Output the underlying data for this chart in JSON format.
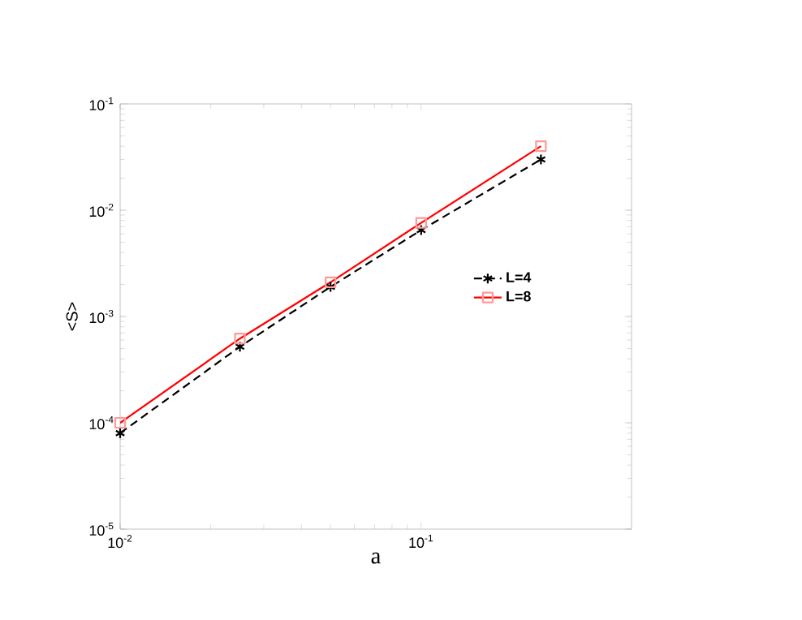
{
  "chart_data": {
    "type": "line",
    "xlabel": "a",
    "ylabel": "<S>",
    "log": "xy",
    "x": [
      0.01,
      0.025,
      0.05,
      0.1,
      0.25
    ],
    "xlim": [
      0.01,
      0.5
    ],
    "ylim": [
      1e-05,
      0.1
    ],
    "xticks": [
      {
        "value": 0.01,
        "label": "10$^{-2}$"
      },
      {
        "value": 0.1,
        "label": "10$^{-1}$"
      }
    ],
    "yticks": [
      {
        "value": 1e-05,
        "label": "10$^{-5}$"
      },
      {
        "value": 0.0001,
        "label": "10$^{-4}$"
      },
      {
        "value": 0.001,
        "label": "10$^{-3}$"
      },
      {
        "value": 0.01,
        "label": "10$^{-2}$"
      },
      {
        "value": 0.1,
        "label": "10$^{-1}$"
      }
    ],
    "legend": "right",
    "grid": false,
    "series": [
      {
        "name": "L=4",
        "color": "#000000",
        "marker": "cross",
        "line_style": "dashed",
        "values": [
          8e-05,
          0.00052,
          0.0019,
          0.0065,
          0.03
        ]
      },
      {
        "name": "L=8",
        "color": "#ff0000",
        "marker": "square",
        "line_style": "solid",
        "values": [
          0.0001,
          0.00062,
          0.0021,
          0.0076,
          0.04
        ]
      }
    ]
  }
}
